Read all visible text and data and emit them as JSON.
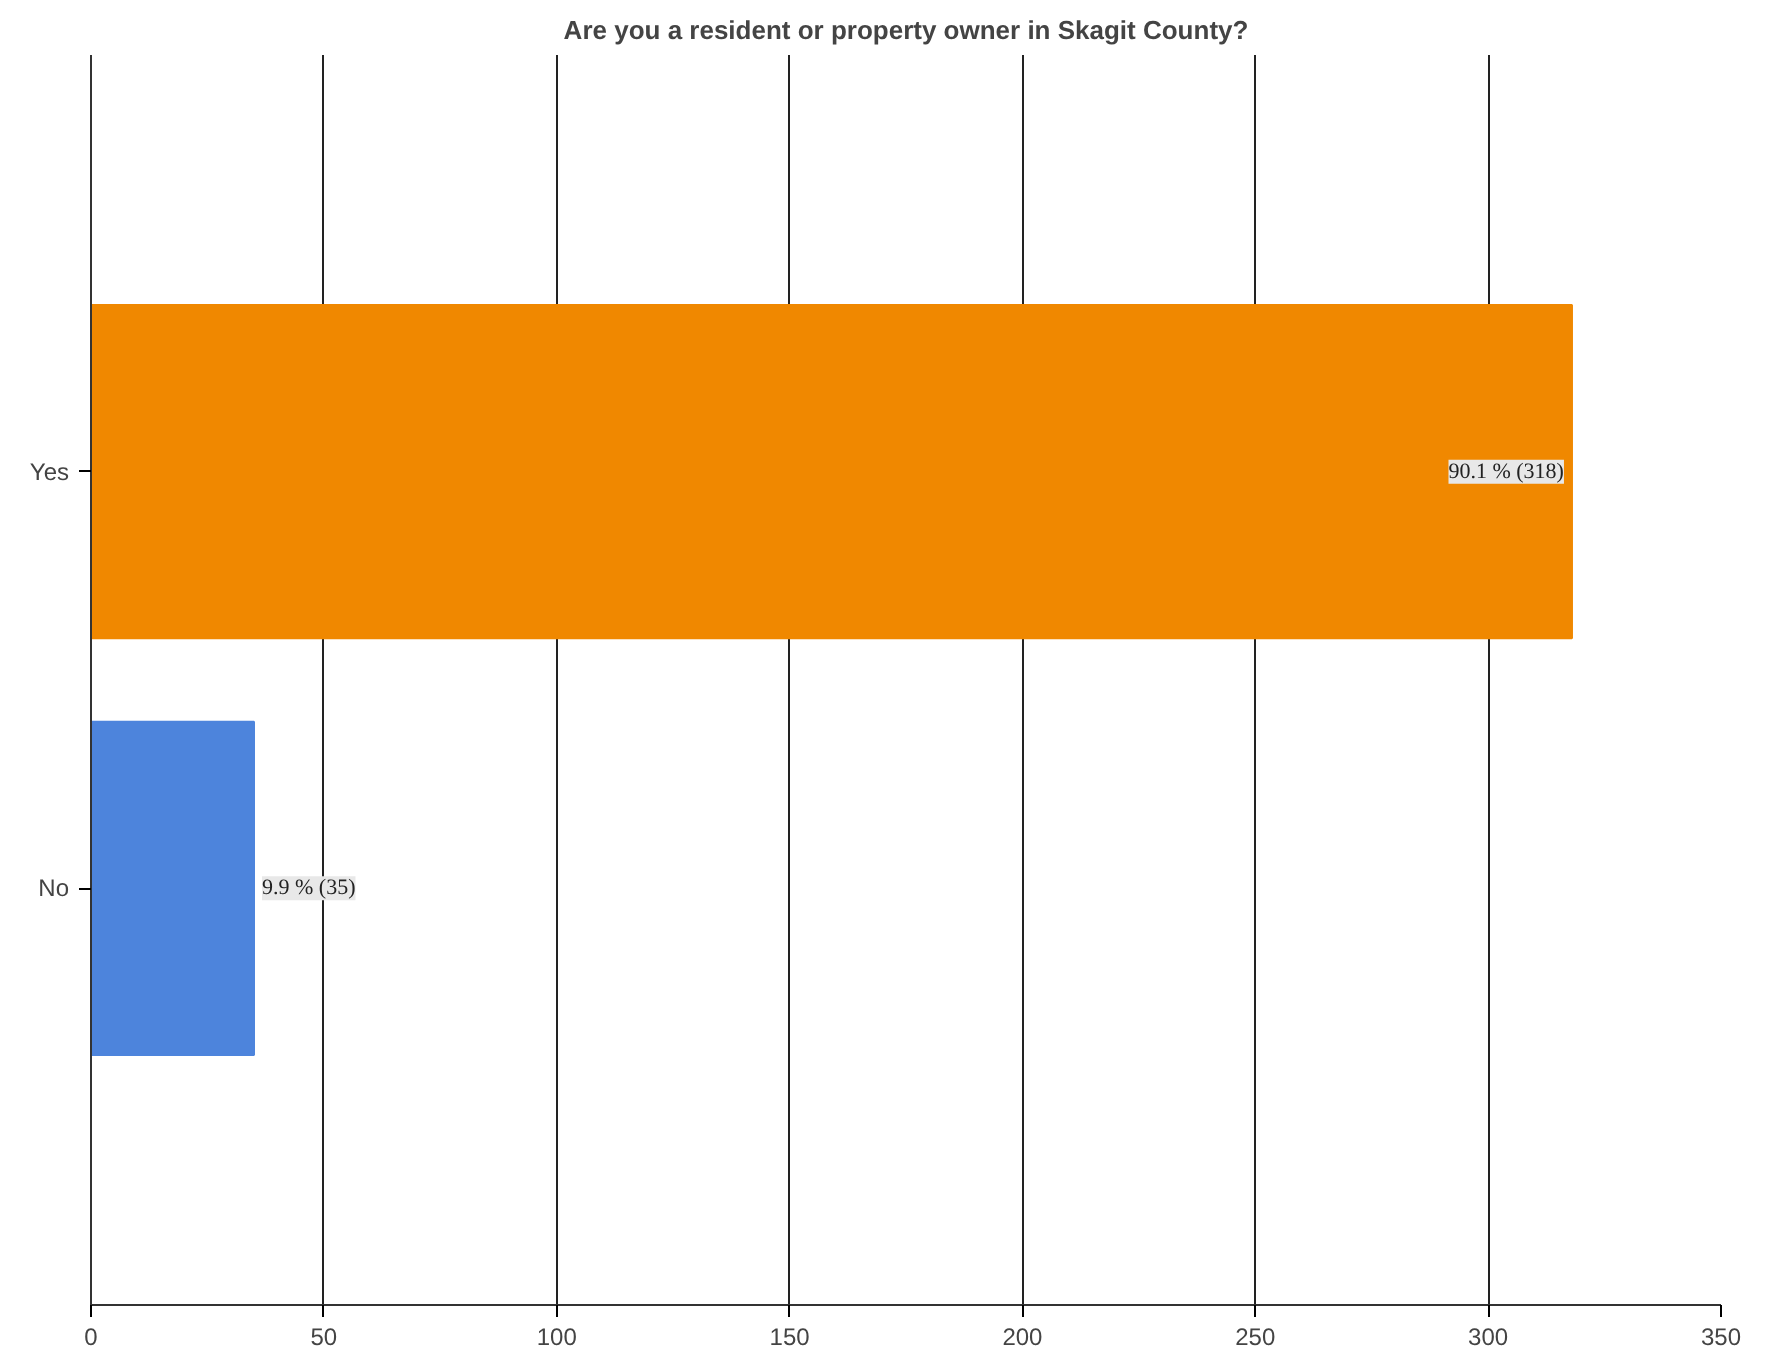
{
  "chart_data": {
    "type": "bar",
    "orientation": "horizontal",
    "title": "Are you a resident or property owner in Skagit County?",
    "categories": [
      "Yes",
      "No"
    ],
    "values": [
      318,
      35
    ],
    "colors": [
      "#f08800",
      "#4d84dc"
    ],
    "value_labels": [
      "90.1 % (318)",
      "9.9 % (35)"
    ],
    "xlim": [
      0,
      350
    ],
    "xticks": [
      0,
      50,
      100,
      150,
      200,
      250,
      300,
      350
    ],
    "grid": "x"
  }
}
